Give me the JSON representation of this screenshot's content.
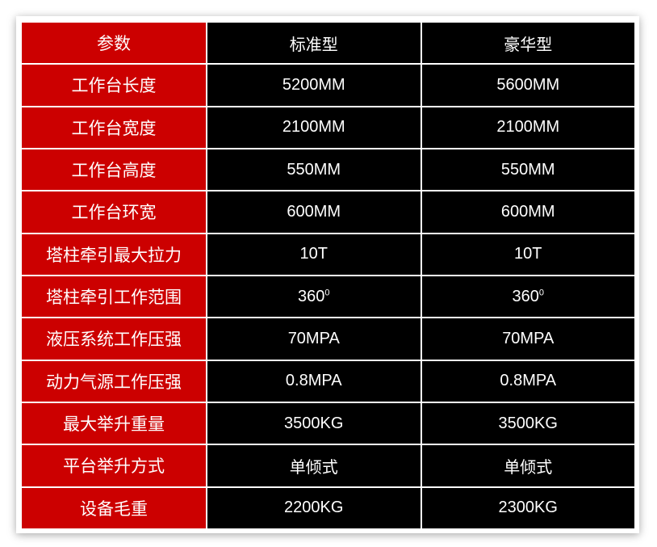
{
  "colors": {
    "param_bg": "#cc0000",
    "value_bg": "#000000",
    "text": "#ffffff"
  },
  "header": {
    "param": "参数",
    "standard": "标准型",
    "deluxe": "豪华型"
  },
  "rows": [
    {
      "param": "工作台长度",
      "standard": "5200MM",
      "deluxe": "5600MM"
    },
    {
      "param": "工作台宽度",
      "standard": "2100MM",
      "deluxe": "2100MM"
    },
    {
      "param": "工作台高度",
      "standard": "550MM",
      "deluxe": "550MM"
    },
    {
      "param": "工作台环宽",
      "standard": "600MM",
      "deluxe": "600MM"
    },
    {
      "param": "塔柱牵引最大拉力",
      "standard": "10T",
      "deluxe": "10T"
    },
    {
      "param": "塔柱牵引工作范围",
      "standard": "360",
      "deluxe": "360",
      "sup": "0"
    },
    {
      "param": "液压系统工作压强",
      "standard": "70MPA",
      "deluxe": "70MPA"
    },
    {
      "param": "动力气源工作压强",
      "standard": "0.8MPA",
      "deluxe": "0.8MPA"
    },
    {
      "param": "最大举升重量",
      "standard": "3500KG",
      "deluxe": "3500KG"
    },
    {
      "param": "平台举升方式",
      "standard": "单倾式",
      "deluxe": "单倾式"
    },
    {
      "param": "设备毛重",
      "standard": "2200KG",
      "deluxe": "2300KG"
    }
  ]
}
